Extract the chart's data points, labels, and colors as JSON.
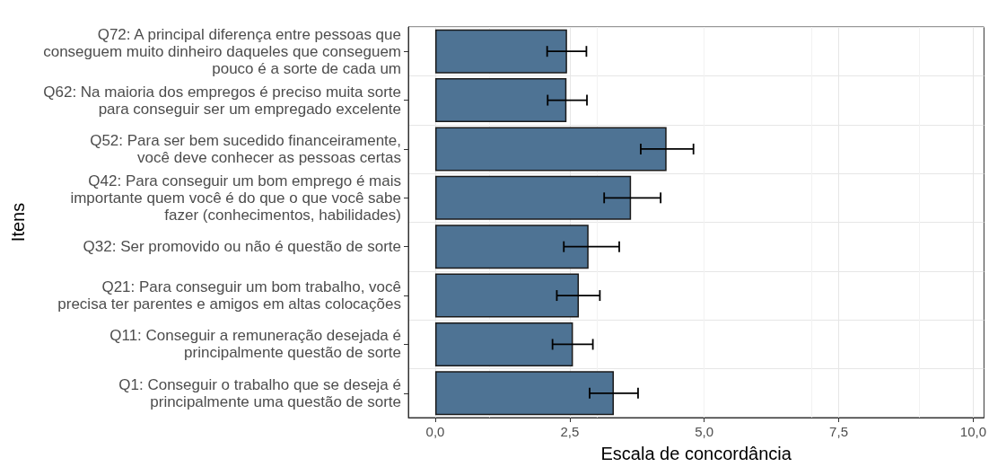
{
  "chart_data": {
    "type": "bar",
    "orientation": "horizontal",
    "xlabel": "Escala de concordância",
    "ylabel": "Itens",
    "categories": [
      "Q72: A principal diferença entre pessoas que\nconseguem muito dinheiro daqueles que conseguem\npouco é a sorte de cada um",
      "Q62: Na maioria dos empregos é preciso muita sorte\npara conseguir ser um empregado excelente",
      "Q52: Para ser bem sucedido financeiramente,\nvocê deve conhecer as pessoas certas",
      "Q42: Para conseguir um bom emprego é mais\nimportante quem você é do que o que você sabe\nfazer (conhecimentos, habilidades)",
      "Q32: Ser promovido ou não é questão de sorte",
      "Q21: Para conseguir um bom trabalho, você\nprecisa ter parentes e amigos em altas colocações",
      "Q11: Conseguir a remuneração desejada é\nprincipalmente questão de sorte",
      "Q1: Conseguir o trabalho que se deseja é\nprincipalmente uma questão de sorte"
    ],
    "values": [
      2.45,
      2.44,
      4.3,
      3.64,
      2.85,
      2.67,
      2.56,
      3.32
    ],
    "errors": [
      [
        2.08,
        2.81
      ],
      [
        2.09,
        2.82
      ],
      [
        3.82,
        4.8
      ],
      [
        3.14,
        4.19
      ],
      [
        2.39,
        3.42
      ],
      [
        2.26,
        3.06
      ],
      [
        2.18,
        2.93
      ],
      [
        2.87,
        3.77
      ]
    ],
    "color": "#4e7394",
    "xlim": [
      -0.5,
      10.2
    ],
    "xticks": [
      {
        "value": 0,
        "label": "0,0"
      },
      {
        "value": 2.5,
        "label": "2,5"
      },
      {
        "value": 5,
        "label": "5,0"
      },
      {
        "value": 7.5,
        "label": "7,5"
      },
      {
        "value": 10,
        "label": "10,0"
      }
    ],
    "grid": true
  }
}
